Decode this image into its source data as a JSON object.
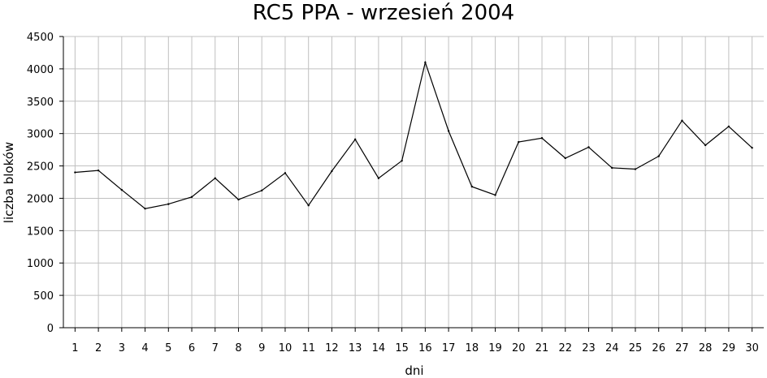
{
  "chart_data": {
    "type": "line",
    "title": "RC5 PPA - wrzesień 2004",
    "xlabel": "dni",
    "ylabel": "liczba bloków",
    "categories": [
      "1",
      "2",
      "3",
      "4",
      "5",
      "6",
      "7",
      "8",
      "9",
      "10",
      "11",
      "12",
      "13",
      "14",
      "15",
      "16",
      "17",
      "18",
      "19",
      "20",
      "21",
      "22",
      "23",
      "24",
      "25",
      "26",
      "27",
      "28",
      "29",
      "30"
    ],
    "series": [
      {
        "values": [
          2400,
          2430,
          2130,
          1840,
          1910,
          2020,
          2310,
          1980,
          2120,
          2390,
          1890,
          2420,
          2910,
          2310,
          2580,
          4100,
          3040,
          2180,
          2050,
          2870,
          2930,
          2620,
          2790,
          2470,
          2450,
          2650,
          3200,
          2820,
          3110,
          2780
        ]
      }
    ],
    "ylim": [
      0,
      4500
    ],
    "yticks": [
      0,
      500,
      1000,
      1500,
      2000,
      2500,
      3000,
      3500,
      4000,
      4500
    ],
    "grid": true,
    "legend": "none",
    "colors": {
      "line": "#000000",
      "grid": "#c0c0c0",
      "axis": "#000000"
    }
  }
}
